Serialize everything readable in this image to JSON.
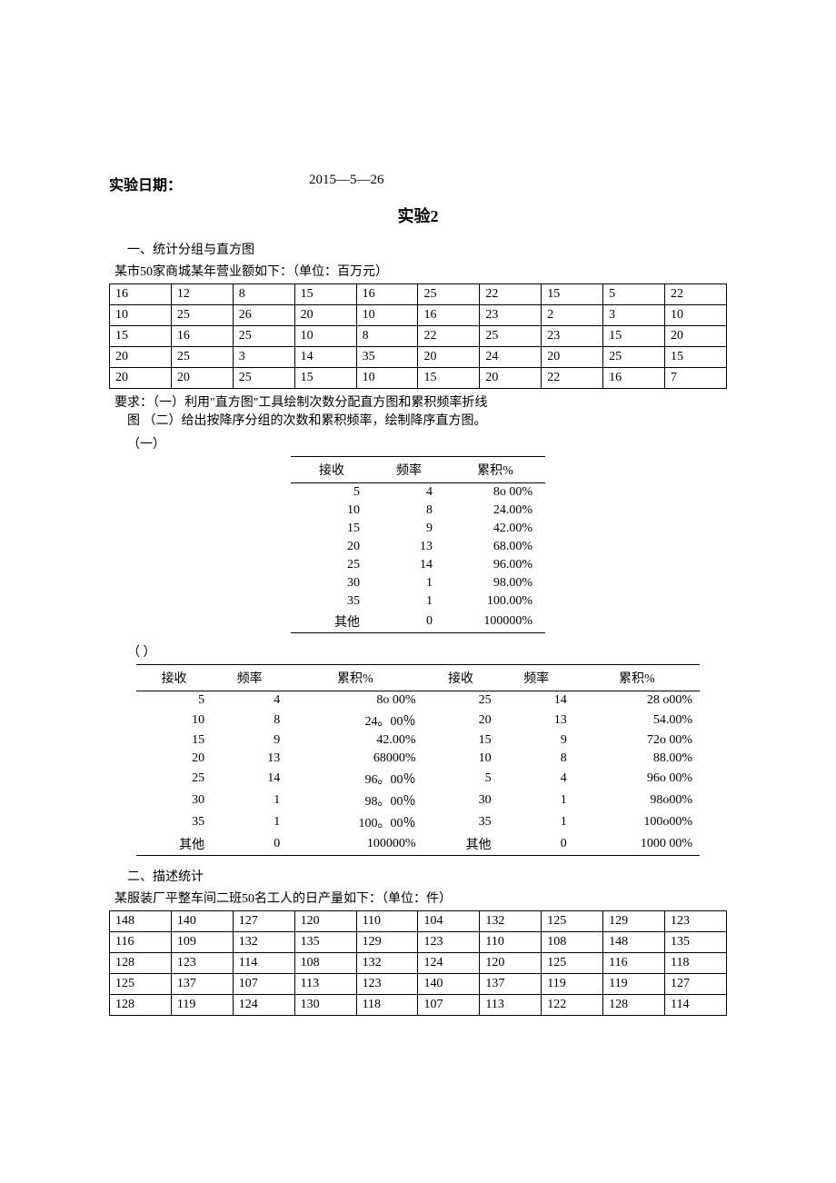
{
  "header": {
    "label": "实验日期：",
    "value": "2015—5—26"
  },
  "title": "实验2",
  "section1": {
    "heading": "一、统计分组与直方图",
    "subheading": "某市50家商城某年营业额如下：（单位：百万元）",
    "rows": [
      [
        "16",
        "12",
        "8",
        "15",
        "16",
        "25",
        "22",
        "15",
        "5",
        "22"
      ],
      [
        "10",
        "25",
        "26",
        "20",
        "10",
        "16",
        "23",
        "2",
        "3",
        "10"
      ],
      [
        "15",
        "16",
        "25",
        "10",
        "8",
        "22",
        "25",
        "23",
        "15",
        "20"
      ],
      [
        "20",
        "25",
        "3",
        "14",
        "35",
        "20",
        "24",
        "20",
        "25",
        "15"
      ],
      [
        "20",
        "20",
        "25",
        "15",
        "10",
        "15",
        "20",
        "22",
        "16",
        "7"
      ]
    ],
    "req1": "要求：（一）利用\"直方图\"工具绘制次数分配直方图和累积频率折线",
    "req2": "图 （二）给出按降序分组的次数和累积频率，绘制降序直方图。",
    "part1_label": "（一）",
    "freq_headers": [
      "接收",
      "频率",
      "累积%"
    ],
    "freq_rows": [
      [
        "5",
        "4",
        "8o 00%"
      ],
      [
        "10",
        "8",
        "24.00%"
      ],
      [
        "15",
        "9",
        "42.00%"
      ],
      [
        "20",
        "13",
        "68.00%"
      ],
      [
        "25",
        "14",
        "96.00%"
      ],
      [
        "30",
        "1",
        "98.00%"
      ],
      [
        "35",
        "1",
        "100.00%"
      ],
      [
        "其他",
        "0",
        "100000%"
      ]
    ],
    "part2_label": "（  ）",
    "double_headers": [
      "接收",
      "频率",
      "累积%",
      "接收",
      "频率",
      "累积%"
    ],
    "double_rows": [
      [
        "5",
        "4",
        "8o 00%",
        "25",
        "14",
        "28 o00%"
      ],
      [
        "10",
        "8",
        "24。00％",
        "20",
        "13",
        "54.00%"
      ],
      [
        "15",
        "9",
        "42.00%",
        "15",
        "9",
        "72o  00%"
      ],
      [
        "20",
        "13",
        "68000%",
        "10",
        "8",
        "88.00%"
      ],
      [
        "25",
        "14",
        "96。00％",
        "5",
        "4",
        "96o  00%"
      ],
      [
        "30",
        "1",
        "98。00％",
        "30",
        "1",
        "98o00%"
      ],
      [
        "35",
        "1",
        "100。00％",
        "35",
        "1",
        "100o00%"
      ],
      [
        "其他",
        "0",
        "100000%",
        "其他",
        "0",
        "1000 00%"
      ]
    ]
  },
  "section2": {
    "heading": "二、描述统计",
    "subheading": "某服装厂平整车间二班50名工人的日产量如下：（单位：件）",
    "rows": [
      [
        "148",
        "140",
        "127",
        "120",
        "110",
        "104",
        "132",
        "125",
        "129",
        "123"
      ],
      [
        "116",
        "109",
        "132",
        "135",
        "129",
        "123",
        "110",
        "108",
        "148",
        "135"
      ],
      [
        "128",
        "123",
        "114",
        "108",
        "132",
        "124",
        "120",
        "125",
        "116",
        "118"
      ],
      [
        "125",
        "137",
        "107",
        "113",
        "123",
        "140",
        "137",
        "119",
        "119",
        "127"
      ],
      [
        "128",
        "119",
        "124",
        "130",
        "118",
        "107",
        "113",
        "122",
        "128",
        "114"
      ]
    ]
  }
}
